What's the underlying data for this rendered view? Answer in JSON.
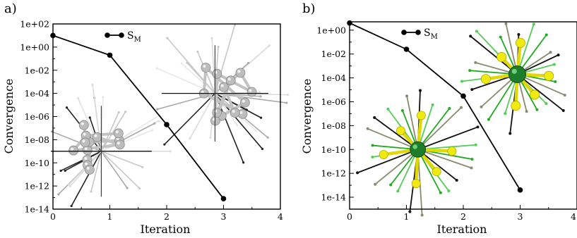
{
  "chart_data": [
    {
      "type": "line",
      "panel": "a)",
      "xlabel": "Iteration",
      "ylabel": "Convergence",
      "yscale": "log",
      "xlim": [
        0,
        4
      ],
      "ylim": [
        1e-14,
        100.0
      ],
      "xticks": [
        "0",
        "1",
        "2",
        "3",
        "4"
      ],
      "yticks": [
        "1e+02",
        "1e+00",
        "1e-02",
        "1e-04",
        "1e-06",
        "1e-08",
        "1e-10",
        "1e-12",
        "1e-14"
      ],
      "legend_position": "top-center",
      "series": [
        {
          "name": "S_M",
          "x": [
            0,
            1,
            2,
            3
          ],
          "y": [
            10,
            0.2,
            2e-07,
            8e-14
          ]
        }
      ],
      "inset": "silver spin cluster with magnetic moment arrows",
      "colors": {
        "line": "#000000",
        "atoms": "#b8b8b8"
      }
    },
    {
      "type": "line",
      "panel": "b)",
      "xlabel": "Iteration",
      "ylabel": "Convergence",
      "yscale": "log",
      "xlim": [
        0,
        4
      ],
      "ylim": [
        1e-15,
        5
      ],
      "xticks": [
        "0",
        "1",
        "2",
        "3",
        "4"
      ],
      "yticks": [
        "1e+00",
        "1e-02",
        "1e-04",
        "1e-06",
        "1e-08",
        "1e-10",
        "1e-12",
        "1e-14"
      ],
      "legend_position": "top-center",
      "series": [
        {
          "name": "S_M",
          "x": [
            0,
            1,
            2,
            3
          ],
          "y": [
            4,
            0.025,
            3e-06,
            4e-14
          ]
        }
      ],
      "inset": "green central atom with yellow ligands and magnetic moment arrows",
      "colors": {
        "line": "#000000",
        "central_atom": "#1e7d2a",
        "ligand": "#e8e000",
        "arrow": "#22aa22"
      }
    }
  ]
}
